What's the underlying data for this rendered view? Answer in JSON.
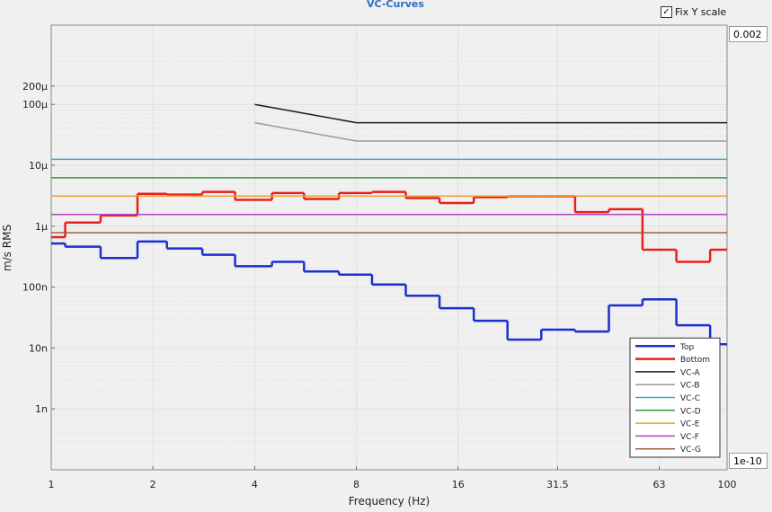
{
  "controls": {
    "fix_y_scale": {
      "label": "Fix Y scale",
      "checked": true
    },
    "ymax_input": "0.002",
    "ymin_input": "1e-10"
  },
  "chart_data": {
    "type": "line",
    "title": "VC-Curves",
    "xlabel": "Frequency (Hz)",
    "ylabel": "m/s RMS",
    "xscale": "log",
    "yscale": "log",
    "xlim": [
      1,
      100
    ],
    "ylim": [
      1e-10,
      0.002
    ],
    "xticks": [
      1,
      2,
      4,
      8,
      16,
      31.5,
      63,
      100
    ],
    "yticks": [
      {
        "value": 1e-09,
        "label": "1n"
      },
      {
        "value": 1e-08,
        "label": "10n"
      },
      {
        "value": 1e-07,
        "label": "100n"
      },
      {
        "value": 1e-06,
        "label": "1μ"
      },
      {
        "value": 1e-05,
        "label": "10μ"
      },
      {
        "value": 0.0001,
        "label": "100μ"
      },
      {
        "value": 0.0002,
        "label": "200μ"
      }
    ],
    "grid": true,
    "legend": "lower right",
    "series": [
      {
        "name": "Top",
        "color": "#1a2fd0",
        "drawstyle": "steps-post",
        "x": [
          1,
          1.1,
          1.4,
          1.8,
          2.2,
          2.8,
          3.5,
          4.5,
          5.6,
          7.1,
          8.9,
          11.2,
          14.1,
          17.8,
          22.4,
          28.2,
          35.5,
          44.7,
          56.2,
          70.8,
          89.1
        ],
        "values": [
          5.2e-07,
          4.6e-07,
          3e-07,
          5.6e-07,
          4.3e-07,
          3.4e-07,
          2.2e-07,
          2.6e-07,
          1.8e-07,
          1.6e-07,
          1.1e-07,
          7.2e-08,
          4.5e-08,
          2.8e-08,
          1.37e-08,
          2e-08,
          1.86e-08,
          5e-08,
          6.3e-08,
          2.36e-08,
          1.15e-08
        ]
      },
      {
        "name": "Bottom",
        "color": "#e8201a",
        "drawstyle": "steps-post",
        "x": [
          1,
          1.1,
          1.4,
          1.8,
          2.2,
          2.8,
          3.5,
          4.5,
          5.6,
          7.1,
          8.9,
          11.2,
          14.1,
          17.8,
          22.4,
          28.2,
          35.5,
          44.7,
          56.2,
          70.8,
          89.1
        ],
        "values": [
          6.6e-07,
          1.15e-06,
          1.5e-06,
          3.4e-06,
          3.3e-06,
          3.65e-06,
          2.7e-06,
          3.5e-06,
          2.8e-06,
          3.5e-06,
          3.65e-06,
          2.9e-06,
          2.4e-06,
          3e-06,
          3.1e-06,
          3.1e-06,
          1.7e-06,
          1.9e-06,
          4.1e-07,
          2.6e-07,
          4.1e-07
        ]
      },
      {
        "name": "VC-A",
        "color": "#1a1a1a",
        "x": [
          4,
          8,
          100
        ],
        "values": [
          0.0001,
          5e-05,
          5e-05
        ]
      },
      {
        "name": "VC-B",
        "color": "#9a9a9a",
        "x": [
          4,
          8,
          100
        ],
        "values": [
          5e-05,
          2.5e-05,
          2.5e-05
        ]
      },
      {
        "name": "VC-C",
        "color": "#3aa8c0",
        "x": [
          1,
          100
        ],
        "values": [
          1.25e-05,
          1.25e-05
        ]
      },
      {
        "name": "VC-D",
        "color": "#2e9a3a",
        "x": [
          1,
          100
        ],
        "values": [
          6.25e-06,
          6.25e-06
        ]
      },
      {
        "name": "VC-E",
        "color": "#f0a030",
        "x": [
          1,
          100
        ],
        "values": [
          3.12e-06,
          3.12e-06
        ]
      },
      {
        "name": "VC-F",
        "color": "#b040c0",
        "x": [
          1,
          100
        ],
        "values": [
          1.56e-06,
          1.56e-06
        ]
      },
      {
        "name": "VC-G",
        "color": "#a0603a",
        "x": [
          1,
          100
        ],
        "values": [
          7.8e-07,
          7.8e-07
        ]
      }
    ]
  }
}
